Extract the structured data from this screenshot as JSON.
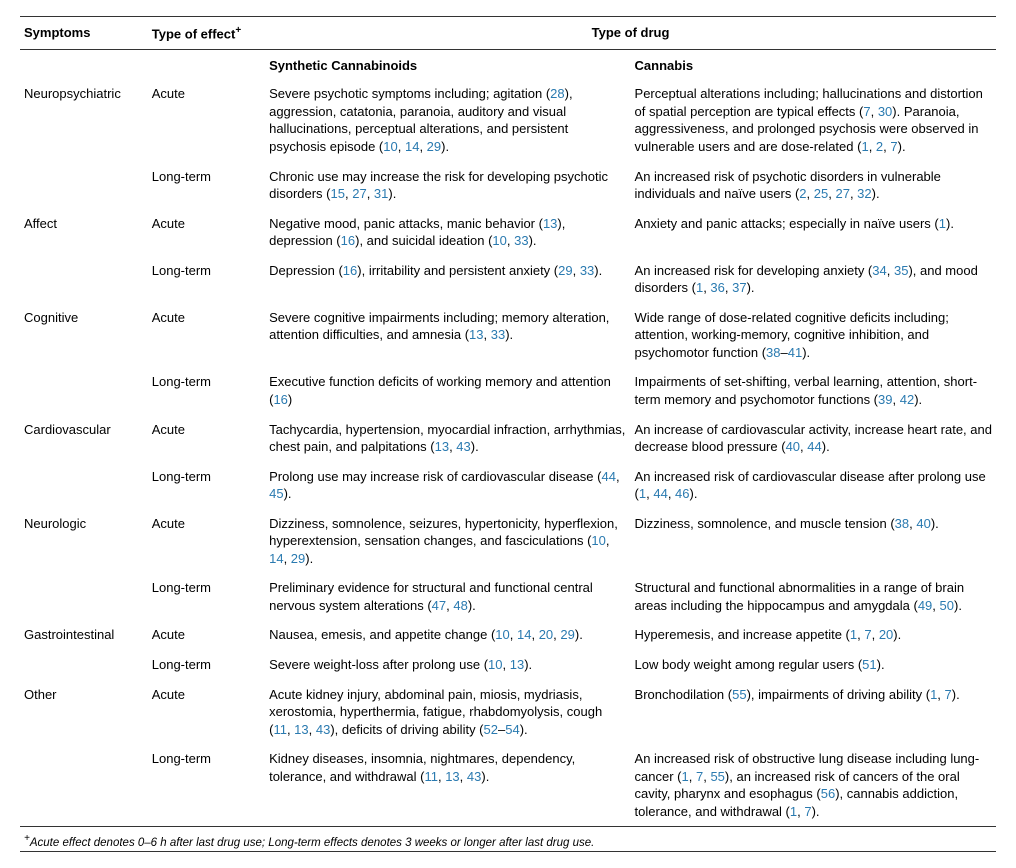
{
  "colors": {
    "ref": "#2a7ab0",
    "text": "#000000",
    "rule": "#333333",
    "bg": "#ffffff"
  },
  "header": {
    "col1": "Symptoms",
    "col2_pre": "Type of effect",
    "col2_sup": "+",
    "col3_span": "Type of drug"
  },
  "subheader": {
    "sc": "Synthetic Cannabinoids",
    "can": "Cannabis"
  },
  "symptoms": [
    {
      "name": "Neuropsychiatric",
      "rows": [
        {
          "effect": "Acute",
          "sc": [
            {
              "t": "Severe psychotic symptoms including; agitation ("
            },
            {
              "r": "28"
            },
            {
              "t": "), aggression, catatonia, paranoia, auditory and visual hallucinations, perceptual alterations, and persistent psychosis episode ("
            },
            {
              "r": "10"
            },
            {
              "t": ", "
            },
            {
              "r": "14"
            },
            {
              "t": ", "
            },
            {
              "r": "29"
            },
            {
              "t": ")."
            }
          ],
          "can": [
            {
              "t": "Perceptual alterations including; hallucinations and distortion of spatial perception are typical effects ("
            },
            {
              "r": "7"
            },
            {
              "t": ", "
            },
            {
              "r": "30"
            },
            {
              "t": "). Paranoia, aggressiveness, and prolonged psychosis were observed in vulnerable users and are dose-related ("
            },
            {
              "r": "1"
            },
            {
              "t": ", "
            },
            {
              "r": "2"
            },
            {
              "t": ", "
            },
            {
              "r": "7"
            },
            {
              "t": ")."
            }
          ]
        },
        {
          "effect": "Long-term",
          "sc": [
            {
              "t": "Chronic use may increase the risk for developing psychotic disorders ("
            },
            {
              "r": "15"
            },
            {
              "t": ", "
            },
            {
              "r": "27"
            },
            {
              "t": ", "
            },
            {
              "r": "31"
            },
            {
              "t": ")."
            }
          ],
          "can": [
            {
              "t": "An increased risk of psychotic disorders in vulnerable individuals and naïve users ("
            },
            {
              "r": "2"
            },
            {
              "t": ", "
            },
            {
              "r": "25"
            },
            {
              "t": ", "
            },
            {
              "r": "27"
            },
            {
              "t": ", "
            },
            {
              "r": "32"
            },
            {
              "t": ")."
            }
          ]
        }
      ]
    },
    {
      "name": "Affect",
      "rows": [
        {
          "effect": "Acute",
          "sc": [
            {
              "t": "Negative mood, panic attacks, manic behavior ("
            },
            {
              "r": "13"
            },
            {
              "t": "), depression ("
            },
            {
              "r": "16"
            },
            {
              "t": "), and suicidal ideation ("
            },
            {
              "r": "10"
            },
            {
              "t": ", "
            },
            {
              "r": "33"
            },
            {
              "t": ")."
            }
          ],
          "can": [
            {
              "t": "Anxiety and panic attacks; especially in naïve users ("
            },
            {
              "r": "1"
            },
            {
              "t": ")."
            }
          ]
        },
        {
          "effect": "Long-term",
          "sc": [
            {
              "t": "Depression ("
            },
            {
              "r": "16"
            },
            {
              "t": "), irritability and persistent anxiety ("
            },
            {
              "r": "29"
            },
            {
              "t": ", "
            },
            {
              "r": "33"
            },
            {
              "t": ")."
            }
          ],
          "can": [
            {
              "t": "An increased risk for developing anxiety ("
            },
            {
              "r": "34"
            },
            {
              "t": ", "
            },
            {
              "r": "35"
            },
            {
              "t": "), and mood disorders ("
            },
            {
              "r": "1"
            },
            {
              "t": ", "
            },
            {
              "r": "36"
            },
            {
              "t": ", "
            },
            {
              "r": "37"
            },
            {
              "t": ")."
            }
          ]
        }
      ]
    },
    {
      "name": "Cognitive",
      "rows": [
        {
          "effect": "Acute",
          "sc": [
            {
              "t": "Severe cognitive impairments including; memory alteration, attention difficulties, and amnesia ("
            },
            {
              "r": "13"
            },
            {
              "t": ", "
            },
            {
              "r": "33"
            },
            {
              "t": ")."
            }
          ],
          "can": [
            {
              "t": "Wide range of dose-related cognitive deficits including; attention, working-memory, cognitive inhibition, and psychomotor function ("
            },
            {
              "r": "38"
            },
            {
              "t": "–"
            },
            {
              "r": "41"
            },
            {
              "t": ")."
            }
          ]
        },
        {
          "effect": "Long-term",
          "sc": [
            {
              "t": "Executive function deficits of working memory and attention ("
            },
            {
              "r": "16"
            },
            {
              "t": ")"
            }
          ],
          "can": [
            {
              "t": "Impairments of set-shifting, verbal learning, attention, short-term memory and psychomotor functions ("
            },
            {
              "r": "39"
            },
            {
              "t": ", "
            },
            {
              "r": "42"
            },
            {
              "t": ")."
            }
          ]
        }
      ]
    },
    {
      "name": "Cardiovascular",
      "rows": [
        {
          "effect": "Acute",
          "sc": [
            {
              "t": "Tachycardia, hypertension, myocardial infraction, arrhythmias, chest pain, and palpitations ("
            },
            {
              "r": "13"
            },
            {
              "t": ", "
            },
            {
              "r": "43"
            },
            {
              "t": ")."
            }
          ],
          "can": [
            {
              "t": "An increase of cardiovascular activity, increase heart rate, and decrease blood pressure ("
            },
            {
              "r": "40"
            },
            {
              "t": ", "
            },
            {
              "r": "44"
            },
            {
              "t": ")."
            }
          ]
        },
        {
          "effect": "Long-term",
          "sc": [
            {
              "t": "Prolong use may increase risk of cardiovascular disease ("
            },
            {
              "r": "44"
            },
            {
              "t": ", "
            },
            {
              "r": "45"
            },
            {
              "t": ")."
            }
          ],
          "can": [
            {
              "t": "An increased risk of cardiovascular disease after prolong use ("
            },
            {
              "r": "1"
            },
            {
              "t": ", "
            },
            {
              "r": "44"
            },
            {
              "t": ", "
            },
            {
              "r": "46"
            },
            {
              "t": ")."
            }
          ]
        }
      ]
    },
    {
      "name": "Neurologic",
      "rows": [
        {
          "effect": "Acute",
          "sc": [
            {
              "t": "Dizziness, somnolence, seizures, hypertonicity, hyperflexion, hyperextension, sensation changes, and fasciculations ("
            },
            {
              "r": "10"
            },
            {
              "t": ", "
            },
            {
              "r": "14"
            },
            {
              "t": ", "
            },
            {
              "r": "29"
            },
            {
              "t": ")."
            }
          ],
          "can": [
            {
              "t": "Dizziness, somnolence, and muscle tension ("
            },
            {
              "r": "38"
            },
            {
              "t": ", "
            },
            {
              "r": "40"
            },
            {
              "t": ")."
            }
          ]
        },
        {
          "effect": "Long-term",
          "sc": [
            {
              "t": "Preliminary evidence for structural and functional central nervous system alterations ("
            },
            {
              "r": "47"
            },
            {
              "t": ", "
            },
            {
              "r": "48"
            },
            {
              "t": ")."
            }
          ],
          "can": [
            {
              "t": "Structural and functional abnormalities in a range of brain areas including the hippocampus and amygdala ("
            },
            {
              "r": "49"
            },
            {
              "t": ", "
            },
            {
              "r": "50"
            },
            {
              "t": ")."
            }
          ]
        }
      ]
    },
    {
      "name": "Gastrointestinal",
      "rows": [
        {
          "effect": "Acute",
          "sc": [
            {
              "t": "Nausea, emesis, and appetite change ("
            },
            {
              "r": "10"
            },
            {
              "t": ", "
            },
            {
              "r": "14"
            },
            {
              "t": ", "
            },
            {
              "r": "20"
            },
            {
              "t": ", "
            },
            {
              "r": "29"
            },
            {
              "t": ")."
            }
          ],
          "can": [
            {
              "t": "Hyperemesis, and increase appetite ("
            },
            {
              "r": "1"
            },
            {
              "t": ", "
            },
            {
              "r": "7"
            },
            {
              "t": ", "
            },
            {
              "r": "20"
            },
            {
              "t": ")."
            }
          ]
        },
        {
          "effect": "Long-term",
          "sc": [
            {
              "t": "Severe weight-loss after prolong use ("
            },
            {
              "r": "10"
            },
            {
              "t": ", "
            },
            {
              "r": "13"
            },
            {
              "t": ")."
            }
          ],
          "can": [
            {
              "t": "Low body weight among regular users ("
            },
            {
              "r": "51"
            },
            {
              "t": ")."
            }
          ]
        }
      ]
    },
    {
      "name": "Other",
      "rows": [
        {
          "effect": "Acute",
          "sc": [
            {
              "t": "Acute kidney injury, abdominal pain, miosis, mydriasis, xerostomia, hyperthermia, fatigue, rhabdomyolysis, cough ("
            },
            {
              "r": "11"
            },
            {
              "t": ", "
            },
            {
              "r": "13"
            },
            {
              "t": ", "
            },
            {
              "r": "43"
            },
            {
              "t": "), deficits of driving ability ("
            },
            {
              "r": "52"
            },
            {
              "t": "–"
            },
            {
              "r": "54"
            },
            {
              "t": ")."
            }
          ],
          "can": [
            {
              "t": "Bronchodilation ("
            },
            {
              "r": "55"
            },
            {
              "t": "), impairments of driving ability ("
            },
            {
              "r": "1"
            },
            {
              "t": ", "
            },
            {
              "r": "7"
            },
            {
              "t": ")."
            }
          ]
        },
        {
          "effect": "Long-term",
          "sc": [
            {
              "t": "Kidney diseases, insomnia, nightmares, dependency, tolerance, and withdrawal ("
            },
            {
              "r": "11"
            },
            {
              "t": ", "
            },
            {
              "r": "13"
            },
            {
              "t": ", "
            },
            {
              "r": "43"
            },
            {
              "t": ")."
            }
          ],
          "can": [
            {
              "t": "An increased risk of obstructive lung disease including lung-cancer ("
            },
            {
              "r": "1"
            },
            {
              "t": ", "
            },
            {
              "r": "7"
            },
            {
              "t": ", "
            },
            {
              "r": "55"
            },
            {
              "t": "), an increased risk of cancers of the oral cavity, pharynx and esophagus ("
            },
            {
              "r": "56"
            },
            {
              "t": "), cannabis addiction, tolerance, and withdrawal ("
            },
            {
              "r": "1"
            },
            {
              "t": ", "
            },
            {
              "r": "7"
            },
            {
              "t": ")."
            }
          ]
        }
      ]
    }
  ],
  "footnote": {
    "sup": "+",
    "text": "Acute effect denotes 0–6 h after last drug use; Long-term effects denotes 3 weeks or longer after last drug use."
  }
}
